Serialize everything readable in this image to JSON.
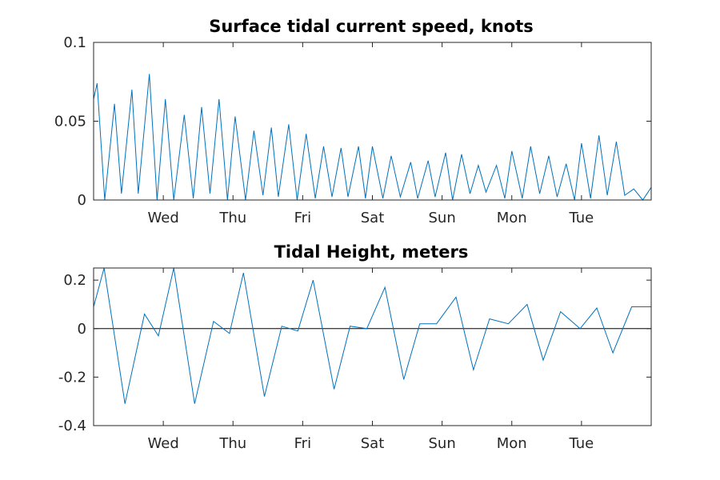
{
  "chart_data": [
    {
      "type": "line",
      "title": "Surface tidal current speed, knots",
      "xlabel": "",
      "ylabel": "",
      "xlim": [
        0,
        8
      ],
      "ylim": [
        0,
        0.1
      ],
      "yticks": [
        0,
        0.05,
        0.1
      ],
      "ytick_labels": [
        "0",
        "0.05",
        "0.1"
      ],
      "xticks": [
        1,
        2,
        3,
        4,
        5,
        6,
        7
      ],
      "xtick_labels": [
        "Wed",
        "Thu",
        "Fri",
        "Sat",
        "Sun",
        "Mon",
        "Tue"
      ],
      "grid": false,
      "series_color": "#0072BD",
      "series": [
        {
          "x": [
            0.0,
            0.05,
            0.16,
            0.3,
            0.4,
            0.55,
            0.64,
            0.8,
            0.91,
            1.03,
            1.15,
            1.3,
            1.43,
            1.55,
            1.67,
            1.8,
            1.92,
            2.03,
            2.18,
            2.3,
            2.43,
            2.55,
            2.65,
            2.8,
            2.92,
            3.05,
            3.18,
            3.3,
            3.42,
            3.55,
            3.65,
            3.8,
            3.9,
            4.0,
            4.15,
            4.27,
            4.4,
            4.55,
            4.65,
            4.8,
            4.9,
            5.05,
            5.15,
            5.28,
            5.4,
            5.52,
            5.63,
            5.78,
            5.9,
            6.0,
            6.15,
            6.27,
            6.4,
            6.53,
            6.65,
            6.78,
            6.9,
            7.0,
            7.13,
            7.25,
            7.37,
            7.5,
            7.62,
            7.75,
            7.88,
            8.0
          ],
          "values": [
            0.064,
            0.074,
            0.0,
            0.061,
            0.004,
            0.07,
            0.004,
            0.08,
            0.0,
            0.064,
            0.0,
            0.054,
            0.001,
            0.059,
            0.004,
            0.064,
            0.0,
            0.053,
            0.0,
            0.044,
            0.003,
            0.046,
            0.002,
            0.048,
            0.0,
            0.042,
            0.001,
            0.034,
            0.002,
            0.033,
            0.002,
            0.034,
            0.001,
            0.034,
            0.001,
            0.028,
            0.002,
            0.024,
            0.001,
            0.025,
            0.002,
            0.03,
            0.0,
            0.029,
            0.004,
            0.022,
            0.005,
            0.022,
            0.001,
            0.031,
            0.001,
            0.034,
            0.004,
            0.028,
            0.002,
            0.023,
            0.0,
            0.036,
            0.001,
            0.041,
            0.003,
            0.037,
            0.003,
            0.007,
            0.0,
            0.008
          ]
        }
      ]
    },
    {
      "type": "line",
      "title": "Tidal Height, meters",
      "xlabel": "",
      "ylabel": "",
      "xlim": [
        0,
        8
      ],
      "ylim": [
        -0.4,
        0.25
      ],
      "yticks": [
        -0.4,
        -0.2,
        0,
        0.2
      ],
      "ytick_labels": [
        "-0.4",
        "-0.2",
        "0",
        "0.2"
      ],
      "xticks": [
        1,
        2,
        3,
        4,
        5,
        6,
        7
      ],
      "xtick_labels": [
        "Wed",
        "Thu",
        "Fri",
        "Sat",
        "Sun",
        "Mon",
        "Tue"
      ],
      "grid": false,
      "zero_line": true,
      "series_color": "#0072BD",
      "series": [
        {
          "x": [
            0.0,
            0.15,
            0.45,
            0.73,
            0.93,
            1.15,
            1.45,
            1.72,
            1.95,
            2.15,
            2.45,
            2.7,
            2.93,
            3.15,
            3.45,
            3.68,
            3.92,
            4.18,
            4.45,
            4.68,
            4.92,
            5.2,
            5.45,
            5.68,
            5.95,
            6.22,
            6.45,
            6.7,
            6.98,
            7.22,
            7.45,
            7.72,
            8.0
          ],
          "values": [
            0.09,
            0.25,
            -0.31,
            0.06,
            -0.03,
            0.25,
            -0.31,
            0.03,
            -0.02,
            0.23,
            -0.28,
            0.01,
            -0.01,
            0.2,
            -0.25,
            0.01,
            0.0,
            0.17,
            -0.21,
            0.02,
            0.02,
            0.13,
            -0.17,
            0.04,
            0.02,
            0.1,
            -0.13,
            0.07,
            0.0,
            0.085,
            -0.1,
            0.09,
            0.09
          ]
        }
      ]
    }
  ]
}
